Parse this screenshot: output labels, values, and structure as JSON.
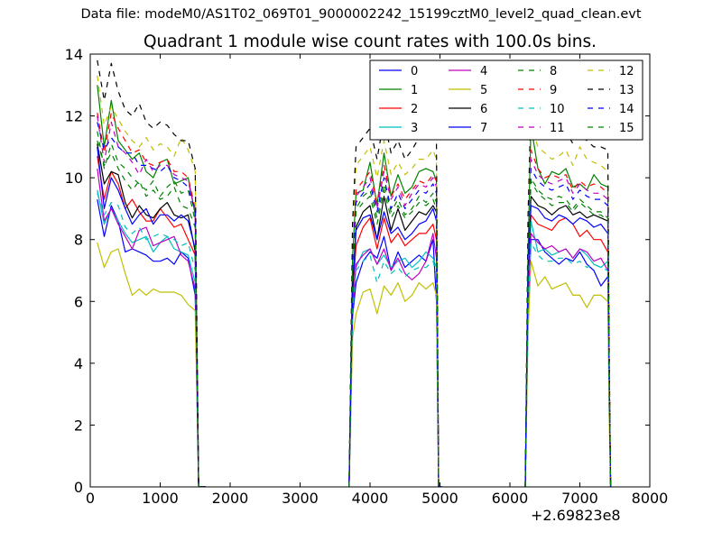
{
  "figure": {
    "suptitle": "Data file: modeM0/AS1T02_069T01_9000002242_15199cztM0_level2_quad_clean.evt"
  },
  "chart_data": {
    "type": "line",
    "title": "Quadrant 1 module wise count rates with 100.0s bins.",
    "xlabel": "",
    "ylabel": "",
    "x_offset_label": "+2.69823e8",
    "xlim": [
      0,
      8000
    ],
    "ylim": [
      0,
      14
    ],
    "xticks": [
      0,
      1000,
      2000,
      3000,
      4000,
      5000,
      6000,
      7000,
      8000
    ],
    "yticks": [
      0,
      2,
      4,
      6,
      8,
      10,
      12,
      14
    ],
    "legend_position": "top-right",
    "legend_columns": 4,
    "segments": [
      {
        "x": [
          100,
          200,
          300,
          400,
          500,
          600,
          700,
          800,
          900,
          1000,
          1100,
          1200,
          1300,
          1400,
          1500,
          1550,
          1610,
          1650
        ]
      },
      {
        "x": [
          3700,
          3750,
          3800,
          3900,
          4000,
          4100,
          4200,
          4300,
          4400,
          4500,
          4600,
          4700,
          4800,
          4900,
          4950,
          4980,
          5030
        ]
      },
      {
        "x": [
          6220,
          6260,
          6300,
          6400,
          6500,
          6600,
          6700,
          6800,
          6900,
          7000,
          7100,
          7200,
          7300,
          7400,
          7420,
          7440
        ]
      }
    ],
    "series": [
      {
        "name": "0",
        "color": "#0000ff",
        "dash": false,
        "seg_values": [
          [
            9.3,
            8.1,
            9.1,
            8.6,
            7.6,
            7.7,
            7.6,
            7.5,
            7.3,
            7.3,
            7.4,
            7.2,
            7.6,
            7.4,
            6.2,
            0,
            0,
            0
          ],
          [
            0,
            5.5,
            6.6,
            7.3,
            7.6,
            7.4,
            8.1,
            7.0,
            7.6,
            7.1,
            7.3,
            7.5,
            7.3,
            8.0,
            6.0,
            0,
            0
          ],
          [
            0,
            5.5,
            8.0,
            8.0,
            7.6,
            7.4,
            7.2,
            7.4,
            7.3,
            7.6,
            7.2,
            7.0,
            6.5,
            6.8,
            3.3,
            0
          ]
        ]
      },
      {
        "name": "1",
        "color": "#008000",
        "dash": false,
        "seg_values": [
          [
            13.0,
            11.0,
            12.5,
            11.2,
            10.9,
            10.6,
            10.8,
            10.2,
            10.0,
            10.5,
            10.6,
            9.8,
            9.9,
            10.0,
            8.8,
            0,
            0,
            0
          ],
          [
            0,
            7.4,
            9.5,
            9.6,
            10.5,
            9.1,
            10.8,
            9.4,
            10.1,
            9.5,
            9.7,
            10.2,
            10.3,
            10.2,
            9.9,
            0,
            0
          ],
          [
            0,
            7.6,
            11.7,
            10.3,
            9.8,
            10.2,
            10.1,
            10.3,
            9.7,
            9.8,
            9.6,
            10.1,
            9.8,
            9.7,
            3.8,
            0
          ]
        ]
      },
      {
        "name": "2",
        "color": "#ff0000",
        "dash": false,
        "seg_values": [
          [
            10.7,
            9.3,
            10.2,
            9.8,
            9.0,
            9.3,
            8.9,
            8.6,
            8.6,
            9.0,
            8.7,
            8.4,
            8.5,
            8.0,
            7.5,
            0,
            0,
            0
          ],
          [
            0,
            6.2,
            7.8,
            8.4,
            8.7,
            7.7,
            8.7,
            7.9,
            8.2,
            7.8,
            8.0,
            8.2,
            8.2,
            8.5,
            8.0,
            0,
            0
          ],
          [
            0,
            6.4,
            8.8,
            8.5,
            8.4,
            8.3,
            8.6,
            8.7,
            8.5,
            8.1,
            8.3,
            8.0,
            8.0,
            7.6,
            3.0,
            0
          ]
        ]
      },
      {
        "name": "3",
        "color": "#00bfbf",
        "dash": false,
        "seg_values": [
          [
            9.6,
            8.5,
            9.0,
            8.6,
            8.2,
            7.9,
            8.0,
            8.1,
            7.6,
            7.9,
            8.1,
            7.7,
            7.6,
            7.5,
            6.6,
            0,
            0,
            0
          ],
          [
            0,
            5.9,
            7.1,
            7.6,
            7.7,
            7.2,
            7.5,
            7.1,
            7.3,
            7.4,
            7.1,
            7.3,
            7.6,
            7.4,
            7.1,
            0,
            0
          ],
          [
            0,
            6.1,
            8.6,
            7.6,
            7.7,
            7.5,
            7.6,
            7.7,
            7.4,
            7.7,
            7.5,
            7.2,
            7.1,
            7.3,
            2.8,
            0
          ]
        ]
      },
      {
        "name": "4",
        "color": "#bf00bf",
        "dash": false,
        "seg_values": [
          [
            10.3,
            8.6,
            9.0,
            8.5,
            8.1,
            7.7,
            8.3,
            8.4,
            7.8,
            7.9,
            8.0,
            8.1,
            7.5,
            7.3,
            6.4,
            0,
            0,
            0
          ],
          [
            0,
            5.6,
            7.2,
            7.5,
            7.7,
            7.2,
            7.7,
            7.0,
            7.4,
            6.9,
            6.7,
            6.9,
            7.3,
            8.2,
            7.4,
            0,
            0
          ],
          [
            0,
            6.0,
            8.2,
            7.9,
            7.7,
            7.8,
            7.6,
            7.7,
            7.4,
            7.7,
            7.6,
            7.3,
            7.4,
            7.0,
            3.4,
            0
          ]
        ]
      },
      {
        "name": "5",
        "color": "#bfbf00",
        "dash": false,
        "seg_values": [
          [
            7.9,
            7.1,
            7.6,
            7.7,
            6.9,
            6.2,
            6.4,
            6.2,
            6.4,
            6.3,
            6.3,
            6.3,
            6.2,
            5.9,
            5.7,
            0,
            0,
            0
          ],
          [
            0,
            4.8,
            5.6,
            6.3,
            6.4,
            5.6,
            6.5,
            6.2,
            6.6,
            6.0,
            6.2,
            6.6,
            6.4,
            6.6,
            6.2,
            0,
            0
          ],
          [
            0,
            5.0,
            7.3,
            6.5,
            6.8,
            6.4,
            6.5,
            6.6,
            6.2,
            6.2,
            5.8,
            6.2,
            6.2,
            6.0,
            2.2,
            0
          ]
        ]
      },
      {
        "name": "6",
        "color": "#000000",
        "dash": false,
        "seg_values": [
          [
            11.1,
            9.8,
            10.2,
            10.1,
            9.2,
            8.7,
            9.1,
            8.8,
            8.7,
            9.0,
            9.2,
            8.8,
            8.7,
            8.8,
            7.6,
            0,
            0,
            0
          ],
          [
            0,
            6.5,
            8.4,
            8.9,
            9.1,
            8.0,
            9.4,
            8.3,
            9.0,
            8.3,
            8.6,
            8.9,
            8.8,
            9.1,
            8.9,
            0,
            0
          ],
          [
            0,
            7.0,
            9.4,
            9.1,
            9.0,
            8.8,
            9.0,
            9.1,
            8.8,
            8.9,
            8.7,
            8.8,
            8.7,
            8.6,
            3.5,
            0
          ]
        ]
      },
      {
        "name": "7",
        "color": "#0000ff",
        "dash": false,
        "seg_values": [
          [
            11.0,
            9.0,
            10.0,
            9.6,
            9.0,
            8.5,
            8.8,
            9.0,
            8.5,
            8.8,
            8.8,
            8.6,
            8.8,
            8.6,
            7.7,
            0,
            0,
            0
          ],
          [
            0,
            6.2,
            8.3,
            8.7,
            8.8,
            8.0,
            8.9,
            8.2,
            8.4,
            8.0,
            8.2,
            8.5,
            8.6,
            9.0,
            8.6,
            0,
            0
          ],
          [
            0,
            6.8,
            9.1,
            9.0,
            8.7,
            8.6,
            8.8,
            8.7,
            8.5,
            8.7,
            8.6,
            8.4,
            8.5,
            8.2,
            3.4,
            0
          ]
        ]
      },
      {
        "name": "8",
        "color": "#008000",
        "dash": true,
        "seg_values": [
          [
            11.5,
            10.3,
            11.1,
            10.5,
            10.3,
            10.0,
            9.8,
            9.6,
            9.9,
            9.4,
            9.7,
            9.9,
            9.5,
            9.6,
            8.6,
            0,
            0,
            0
          ],
          [
            0,
            7.0,
            9.0,
            9.4,
            9.6,
            8.7,
            9.8,
            8.9,
            9.3,
            8.8,
            9.0,
            9.4,
            9.2,
            9.5,
            9.2,
            0,
            0
          ],
          [
            0,
            7.2,
            10.0,
            9.6,
            9.4,
            9.3,
            9.4,
            9.3,
            9.0,
            9.3,
            9.1,
            8.9,
            8.9,
            8.7,
            3.9,
            0
          ]
        ]
      },
      {
        "name": "9",
        "color": "#ff0000",
        "dash": true,
        "seg_values": [
          [
            12.1,
            10.8,
            12.1,
            11.6,
            11.2,
            10.8,
            10.9,
            10.5,
            10.4,
            10.5,
            10.6,
            10.2,
            10.2,
            10.0,
            9.0,
            0,
            0,
            0
          ],
          [
            0,
            7.4,
            9.6,
            9.9,
            10.2,
            9.2,
            10.4,
            9.4,
            9.8,
            9.3,
            9.6,
            9.9,
            9.8,
            10.1,
            9.9,
            0,
            0
          ],
          [
            0,
            7.8,
            10.9,
            10.3,
            10.0,
            10.1,
            10.0,
            10.1,
            9.6,
            9.9,
            9.7,
            9.8,
            9.7,
            9.5,
            4.0,
            0
          ]
        ]
      },
      {
        "name": "10",
        "color": "#00bfbf",
        "dash": true,
        "seg_values": [
          [
            9.5,
            8.8,
            9.2,
            9.1,
            8.4,
            8.2,
            8.4,
            8.0,
            8.1,
            8.2,
            8.1,
            8.0,
            7.8,
            7.9,
            7.0,
            0,
            0,
            0
          ],
          [
            0,
            5.6,
            7.0,
            7.3,
            7.5,
            6.6,
            7.3,
            6.9,
            7.1,
            6.8,
            7.0,
            7.1,
            7.1,
            7.3,
            6.9,
            0,
            0
          ],
          [
            0,
            5.7,
            7.9,
            7.5,
            7.3,
            7.3,
            7.4,
            7.4,
            7.2,
            7.3,
            7.1,
            7.2,
            7.1,
            7.0,
            2.9,
            0
          ]
        ]
      },
      {
        "name": "11",
        "color": "#bf00bf",
        "dash": true,
        "seg_values": [
          [
            12.0,
            10.5,
            11.8,
            11.0,
            10.8,
            10.5,
            10.1,
            10.6,
            10.2,
            10.4,
            10.4,
            10.1,
            10.0,
            9.9,
            8.9,
            0,
            0,
            0
          ],
          [
            0,
            7.4,
            9.4,
            9.7,
            10.0,
            9.0,
            10.2,
            9.3,
            9.7,
            9.1,
            9.5,
            9.8,
            9.7,
            10.0,
            9.7,
            0,
            0
          ],
          [
            0,
            7.7,
            10.6,
            10.1,
            9.9,
            9.8,
            9.9,
            10.0,
            9.5,
            9.8,
            9.6,
            9.5,
            9.5,
            9.3,
            4.0,
            0
          ]
        ]
      },
      {
        "name": "12",
        "color": "#bfbf00",
        "dash": true,
        "seg_values": [
          [
            13.3,
            11.7,
            12.3,
            11.9,
            11.5,
            11.2,
            11.0,
            11.3,
            10.9,
            11.1,
            11.0,
            10.7,
            11.3,
            10.9,
            10.2,
            0,
            0,
            0
          ],
          [
            0,
            8.0,
            10.4,
            10.7,
            11.0,
            10.0,
            11.2,
            10.1,
            10.5,
            10.1,
            10.3,
            10.6,
            10.6,
            10.9,
            10.6,
            0,
            0
          ],
          [
            0,
            8.2,
            11.7,
            11.0,
            10.8,
            10.6,
            10.7,
            10.9,
            10.4,
            11.0,
            10.6,
            10.5,
            10.4,
            10.2,
            4.3,
            0
          ]
        ]
      },
      {
        "name": "13",
        "color": "#000000",
        "dash": true,
        "seg_values": [
          [
            13.8,
            12.5,
            13.7,
            12.8,
            12.2,
            12.0,
            12.4,
            11.8,
            11.6,
            11.8,
            11.7,
            11.4,
            11.2,
            11.2,
            10.3,
            0,
            0,
            0
          ],
          [
            0,
            8.5,
            11.0,
            11.3,
            11.6,
            10.6,
            11.9,
            10.8,
            11.2,
            10.6,
            10.9,
            11.3,
            11.2,
            11.5,
            11.1,
            0,
            0
          ],
          [
            0,
            8.8,
            12.3,
            11.9,
            11.4,
            11.3,
            11.3,
            11.5,
            11.1,
            11.4,
            11.2,
            11.0,
            11.0,
            10.9,
            4.5,
            0
          ]
        ]
      },
      {
        "name": "14",
        "color": "#0000ff",
        "dash": true,
        "seg_values": [
          [
            11.8,
            10.9,
            11.3,
            11.0,
            10.8,
            10.8,
            10.4,
            10.4,
            10.3,
            10.2,
            10.4,
            10.0,
            9.9,
            9.7,
            8.9,
            0,
            0,
            0
          ],
          [
            0,
            7.2,
            9.2,
            9.5,
            9.8,
            8.9,
            10.0,
            9.0,
            9.5,
            9.0,
            9.3,
            9.6,
            9.5,
            9.8,
            9.5,
            0,
            0
          ],
          [
            0,
            7.6,
            10.3,
            9.9,
            9.7,
            9.6,
            9.7,
            9.8,
            9.3,
            9.6,
            9.4,
            9.3,
            9.3,
            9.1,
            3.7,
            0
          ]
        ]
      },
      {
        "name": "15",
        "color": "#008000",
        "dash": true,
        "seg_values": [
          [
            11.2,
            10.4,
            10.8,
            10.3,
            9.9,
            9.6,
            9.9,
            9.4,
            9.6,
            9.3,
            9.4,
            9.7,
            9.1,
            9.0,
            8.4,
            0,
            0,
            0
          ],
          [
            0,
            6.9,
            8.9,
            9.2,
            9.4,
            8.5,
            9.6,
            8.7,
            9.1,
            8.7,
            8.9,
            9.2,
            9.1,
            9.3,
            9.0,
            0,
            0
          ],
          [
            0,
            7.1,
            9.9,
            9.5,
            9.3,
            9.1,
            9.2,
            9.2,
            8.9,
            9.2,
            9.0,
            8.8,
            8.8,
            8.6,
            3.8,
            0
          ]
        ]
      }
    ]
  }
}
